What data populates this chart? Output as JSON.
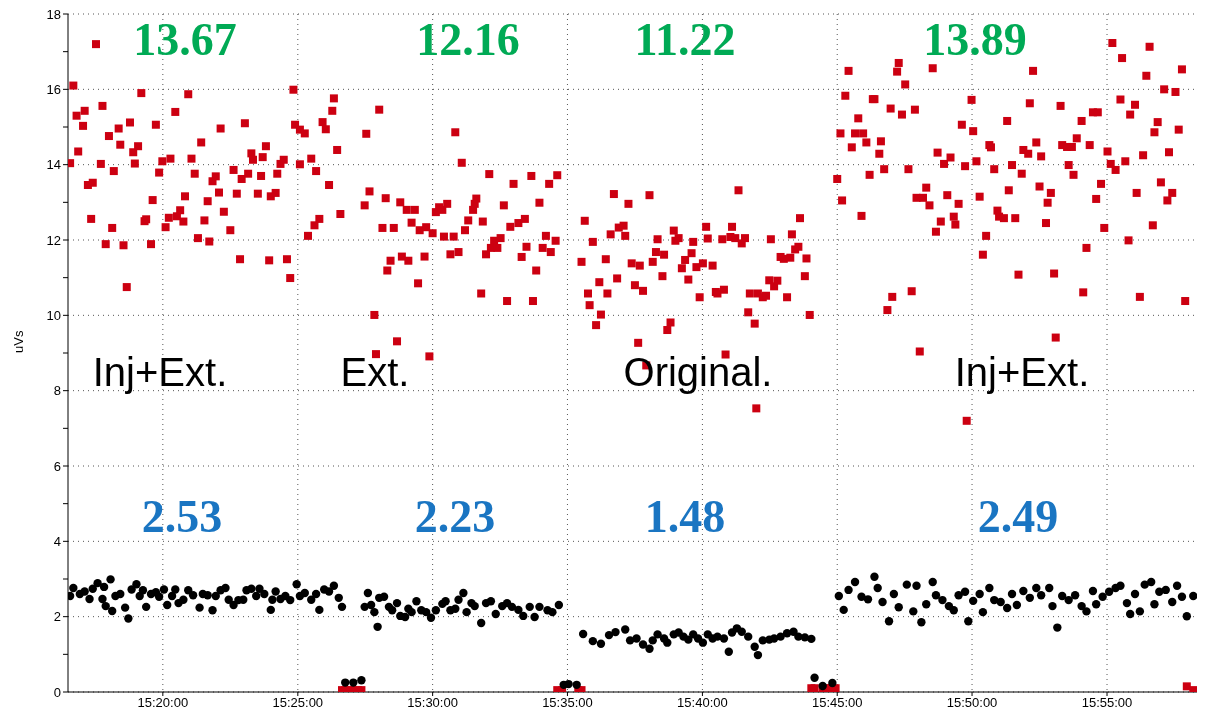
{
  "chart_data": {
    "type": "scatter",
    "ylabel": "uVs",
    "xlim": [
      15.2747,
      15.9723
    ],
    "xticks": [
      {
        "value": 15.3333,
        "label": "15:20:00"
      },
      {
        "value": 15.4167,
        "label": "15:25:00"
      },
      {
        "value": 15.5,
        "label": "15:30:00"
      },
      {
        "value": 15.5833,
        "label": "15:35:00"
      },
      {
        "value": 15.6667,
        "label": "15:40:00"
      },
      {
        "value": 15.75,
        "label": "15:45:00"
      },
      {
        "value": 15.8333,
        "label": "15:50:00"
      },
      {
        "value": 15.9167,
        "label": "15:55:00"
      }
    ],
    "ylim": [
      0,
      18
    ],
    "yticks": [
      0,
      {
        "value": 1,
        "label": null
      },
      2,
      {
        "value": 3,
        "label": null
      },
      4,
      {
        "value": 5,
        "label": null
      },
      6,
      {
        "value": 7,
        "label": null
      },
      8,
      {
        "value": 9,
        "label": null
      },
      10,
      {
        "value": 11,
        "label": null
      },
      12,
      {
        "value": 13,
        "label": null
      },
      14,
      {
        "value": 15,
        "label": null
      },
      16,
      {
        "value": 17,
        "label": null
      },
      18
    ],
    "grid": true,
    "legend": false,
    "line_style": "dotted",
    "series": [
      {
        "color": "#cc0011",
        "marker": "square",
        "x": [
          15.292,
          15.278,
          15.276,
          15.28,
          15.285,
          15.284,
          15.281,
          15.287,
          15.29,
          15.289,
          15.295,
          15.296,
          15.298,
          15.3,
          15.302,
          15.303,
          15.306,
          15.307,
          15.309,
          15.311,
          15.313,
          15.315,
          15.316,
          15.318,
          15.32,
          15.322,
          15.323,
          15.326,
          15.327,
          15.329,
          15.331,
          15.333,
          15.335,
          15.337,
          15.338,
          15.341,
          15.342,
          15.344,
          15.346,
          15.347,
          15.349,
          15.351,
          15.353,
          15.355,
          15.357,
          15.359,
          15.361,
          15.362,
          15.364,
          15.366,
          15.368,
          15.369,
          15.371,
          15.375,
          15.377,
          15.379,
          15.381,
          15.382,
          15.384,
          15.386,
          15.388,
          15.389,
          15.392,
          15.394,
          15.395,
          15.397,
          15.399,
          15.4,
          15.403,
          15.404,
          15.406,
          15.408,
          15.41,
          15.412,
          15.414,
          15.415,
          15.418,
          15.418,
          15.421,
          15.423,
          15.425,
          15.427,
          15.428,
          15.43,
          15.432,
          15.434,
          15.436,
          15.438,
          15.439,
          15.441,
          15.443,
          15.444,
          15.446,
          15.449,
          15.451,
          15.454,
          15.456,
          15.458,
          15.459,
          15.461,
          15.464,
          15.465,
          15.467,
          15.469,
          15.471,
          15.472,
          15.474,
          15.476,
          15.478,
          15.48,
          15.481,
          15.484,
          15.485,
          15.487,
          15.489,
          15.491,
          15.492,
          15.495,
          15.496,
          15.498,
          15.5,
          15.502,
          15.504,
          15.506,
          15.507,
          15.509,
          15.511,
          15.513,
          15.514,
          15.516,
          15.518,
          15.52,
          15.522,
          15.525,
          15.526,
          15.527,
          15.53,
          15.531,
          15.533,
          15.535,
          15.536,
          15.538,
          15.54,
          15.542,
          15.544,
          15.546,
          15.548,
          15.55,
          15.553,
          15.555,
          15.557,
          15.558,
          15.561,
          15.562,
          15.564,
          15.566,
          15.568,
          15.57,
          15.572,
          15.573,
          15.576,
          15.577,
          15.577,
          15.58,
          15.59,
          15.592,
          15.592,
          15.594,
          15.596,
          15.597,
          15.599,
          15.601,
          15.603,
          15.604,
          15.607,
          15.608,
          15.61,
          15.612,
          15.614,
          15.615,
          15.618,
          15.619,
          15.621,
          15.623,
          15.625,
          15.627,
          15.628,
          15.63,
          15.632,
          15.634,
          15.636,
          15.638,
          15.639,
          15.642,
          15.643,
          15.645,
          15.647,
          15.649,
          15.65,
          15.652,
          15.654,
          15.656,
          15.658,
          15.66,
          15.661,
          15.663,
          15.665,
          15.667,
          15.669,
          15.67,
          15.673,
          15.675,
          15.676,
          15.679,
          15.68,
          15.681,
          15.684,
          15.685,
          15.687,
          15.689,
          15.691,
          15.693,
          15.695,
          15.696,
          15.699,
          15.7,
          15.701,
          15.704,
          15.706,
          15.708,
          15.709,
          15.711,
          15.713,
          15.715,
          15.717,
          15.719,
          15.721,
          15.722,
          15.724,
          15.726,
          15.727,
          15.73,
          15.731,
          15.733,
          15.734,
          15.736,
          15.741,
          15.744,
          15.746,
          15.749,
          15.75,
          15.752,
          15.753,
          15.755,
          15.757,
          15.759,
          15.761,
          15.763,
          15.765,
          15.766,
          15.768,
          15.77,
          15.772,
          15.773,
          15.776,
          15.777,
          15.779,
          15.781,
          15.783,
          15.784,
          15.787,
          15.788,
          15.79,
          15.792,
          15.794,
          15.796,
          15.798,
          15.799,
          15.801,
          15.803,
          15.805,
          15.807,
          15.809,
          15.811,
          15.812,
          15.814,
          15.816,
          15.818,
          15.82,
          15.822,
          15.823,
          15.825,
          15.827,
          15.829,
          15.83,
          15.833,
          15.834,
          15.836,
          15.838,
          15.84,
          15.842,
          15.844,
          15.845,
          15.847,
          15.849,
          15.85,
          15.853,
          15.855,
          15.856,
          15.858,
          15.86,
          15.862,
          15.864,
          15.865,
          15.868,
          15.869,
          15.871,
          15.873,
          15.875,
          15.876,
          15.879,
          15.88,
          15.882,
          15.884,
          15.885,
          15.888,
          15.889,
          15.892,
          15.893,
          15.895,
          15.896,
          15.898,
          15.901,
          15.902,
          15.904,
          15.906,
          15.908,
          15.91,
          15.911,
          15.913,
          15.915,
          15.917,
          15.919,
          15.92,
          15.922,
          15.925,
          15.926,
          15.928,
          15.93,
          15.931,
          15.934,
          15.935,
          15.937,
          15.939,
          15.941,
          15.943,
          15.945,
          15.946,
          15.948,
          15.95,
          15.952,
          15.954,
          15.955,
          15.957,
          15.959,
          15.961,
          15.963,
          15.965,
          15.966,
          15.97
        ],
        "values": [
          17.2,
          16.1,
          14.04,
          15.3,
          15.43,
          15.03,
          14.35,
          13.46,
          13.52,
          12.56,
          14.02,
          15.56,
          11.89,
          14.76,
          12.32,
          13.83,
          14.96,
          14.53,
          11.86,
          10.75,
          15.12,
          14.33,
          14.03,
          14.49,
          15.9,
          12.5,
          12.55,
          11.89,
          13.06,
          15.06,
          13.79,
          14.09,
          12.34,
          12.59,
          14.16,
          15.4,
          12.63,
          12.79,
          12.49,
          13.16,
          15.87,
          14.16,
          13.76,
          12.05,
          14.59,
          12.52,
          13.03,
          11.96,
          13.56,
          13.69,
          13.26,
          14.96,
          12.75,
          12.26,
          13.86,
          13.23,
          11.49,
          13.62,
          15.1,
          13.76,
          14.3,
          14.13,
          13.23,
          13.7,
          14.2,
          14.49,
          11.46,
          13.16,
          13.25,
          13.76,
          14.02,
          14.13,
          11.49,
          10.99,
          15.99,
          15.06,
          14.01,
          14.93,
          14.83,
          12.11,
          14.16,
          12.39,
          13.83,
          12.56,
          15.13,
          14.94,
          13.46,
          15.43,
          15.76,
          14.39,
          12.69,
          0.05,
          0.05,
          0.05,
          0.05,
          0.05,
          0.05,
          12.92,
          14.82,
          13.29,
          10.01,
          8.97,
          15.46,
          12.32,
          13.11,
          11.19,
          11.45,
          12.32,
          9.31,
          13.0,
          11.56,
          12.8,
          11.45,
          12.46,
          12.8,
          10.85,
          12.26,
          11.56,
          12.34,
          8.91,
          12.18,
          12.74,
          12.87,
          12.8,
          12.09,
          12.96,
          11.62,
          12.09,
          14.86,
          11.68,
          14.05,
          12.26,
          12.52,
          12.8,
          12.96,
          13.1,
          10.58,
          12.49,
          11.62,
          13.75,
          11.79,
          11.98,
          11.79,
          12.05,
          12.92,
          10.38,
          12.35,
          13.49,
          12.45,
          11.55,
          12.56,
          11.82,
          13.7,
          10.38,
          11.19,
          12.99,
          11.79,
          12.11,
          13.49,
          11.68,
          11.98,
          13.72,
          0.05,
          0.05,
          0.05,
          0.05,
          11.42,
          12.51,
          10.58,
          10.27,
          11.95,
          9.74,
          10.88,
          10.02,
          11.49,
          10.58,
          12.15,
          13.22,
          10.98,
          12.33,
          12.38,
          12.11,
          12.96,
          11.38,
          10.8,
          9.27,
          11.32,
          10.65,
          8.67,
          13.19,
          11.42,
          11.68,
          12.02,
          11.04,
          11.61,
          9.61,
          9.81,
          12.25,
          11.98,
          12.05,
          11.25,
          11.47,
          10.95,
          11.65,
          11.95,
          11.28,
          10.48,
          11.38,
          12.35,
          12.04,
          11.32,
          10.62,
          10.58,
          12.02,
          10.68,
          8.96,
          12.08,
          12.35,
          12.05,
          13.32,
          11.91,
          12.05,
          10.08,
          10.58,
          9.78,
          7.53,
          10.58,
          10.48,
          10.52,
          10.93,
          12.02,
          10.77,
          10.92,
          11.55,
          11.5,
          10.48,
          11.53,
          12.15,
          11.75,
          11.82,
          12.58,
          11.04,
          11.51,
          10.01,
          0.1,
          0.1,
          0.1,
          0.1,
          0.1,
          0.1,
          13.62,
          14.83,
          13.05,
          15.83,
          16.49,
          14.46,
          14.83,
          15.23,
          12.64,
          14.83,
          14.59,
          13.73,
          15.74,
          15.74,
          14.29,
          14.62,
          13.88,
          10.14,
          15.49,
          10.49,
          16.47,
          16.7,
          15.33,
          16.13,
          13.88,
          10.64,
          15.46,
          13.12,
          9.04,
          13.12,
          13.39,
          12.92,
          16.56,
          12.22,
          14.32,
          12.49,
          14.02,
          13.19,
          14.19,
          12.62,
          12.41,
          12.96,
          15.06,
          13.96,
          7.2,
          15.72,
          14.89,
          14.09,
          13.15,
          11.61,
          12.11,
          14.52,
          14.46,
          13.88,
          12.78,
          12.62,
          12.58,
          15.16,
          13.32,
          13.99,
          12.58,
          11.08,
          13.76,
          14.39,
          14.29,
          15.63,
          16.49,
          14.59,
          13.42,
          14.22,
          12.45,
          12.99,
          13.25,
          11.11,
          9.41,
          15.56,
          14.52,
          14.47,
          13.99,
          14.47,
          13.73,
          14.7,
          15.16,
          10.61,
          11.79,
          14.52,
          15.39,
          13.09,
          15.39,
          13.49,
          12.32,
          14.35,
          14.02,
          17.23,
          13.86,
          15.73,
          16.83,
          14.09,
          11.99,
          15.33,
          15.59,
          13.25,
          10.49,
          14.25,
          16.36,
          17.13,
          12.39,
          14.86,
          15.13,
          13.53,
          16.0,
          13.05,
          14.33,
          13.25,
          15.93,
          14.93,
          16.53,
          10.38,
          0.15,
          0.05
        ]
      },
      {
        "color": "#000000",
        "marker": "circle",
        "x": [
          15.276,
          15.278,
          15.282,
          15.285,
          15.288,
          15.29,
          15.293,
          15.296,
          15.297,
          15.298,
          15.301,
          15.302,
          15.304,
          15.307,
          15.31,
          15.312,
          15.314,
          15.317,
          15.319,
          15.321,
          15.323,
          15.326,
          15.329,
          15.331,
          15.334,
          15.336,
          15.339,
          15.341,
          15.343,
          15.346,
          15.349,
          15.352,
          15.356,
          15.358,
          15.361,
          15.364,
          15.366,
          15.369,
          15.372,
          15.374,
          15.377,
          15.38,
          15.383,
          15.385,
          15.388,
          15.391,
          15.393,
          15.396,
          15.4,
          15.401,
          15.403,
          15.406,
          15.409,
          15.412,
          15.416,
          15.418,
          15.421,
          15.425,
          15.428,
          15.43,
          15.433,
          15.436,
          15.439,
          15.442,
          15.444,
          15.446,
          15.451,
          15.456,
          15.458,
          15.46,
          15.462,
          15.464,
          15.466,
          15.467,
          15.47,
          15.473,
          15.475,
          15.478,
          15.48,
          15.483,
          15.485,
          15.487,
          15.49,
          15.493,
          15.496,
          15.499,
          15.502,
          15.506,
          15.508,
          15.511,
          15.514,
          15.516,
          15.519,
          15.521,
          15.524,
          15.526,
          15.53,
          15.533,
          15.536,
          15.539,
          15.543,
          15.546,
          15.549,
          15.553,
          15.556,
          15.56,
          15.563,
          15.566,
          15.571,
          15.574,
          15.578,
          15.581,
          15.584,
          15.589,
          15.593,
          15.599,
          15.604,
          15.609,
          15.613,
          15.619,
          15.622,
          15.626,
          15.63,
          15.634,
          15.636,
          15.639,
          15.643,
          15.645,
          15.649,
          15.652,
          15.655,
          15.658,
          15.661,
          15.664,
          15.667,
          15.67,
          15.673,
          15.676,
          15.68,
          15.683,
          15.685,
          15.688,
          15.691,
          15.695,
          15.699,
          15.701,
          15.704,
          15.708,
          15.711,
          15.715,
          15.719,
          15.723,
          15.726,
          15.73,
          15.734,
          15.736,
          15.741,
          15.747,
          15.751,
          15.754,
          15.757,
          15.761,
          15.765,
          15.769,
          15.773,
          15.775,
          15.778,
          15.782,
          15.785,
          15.788,
          15.793,
          15.797,
          15.799,
          15.802,
          15.805,
          15.809,
          15.811,
          15.815,
          15.819,
          15.822,
          15.825,
          15.829,
          15.831,
          15.834,
          15.838,
          15.84,
          15.844,
          15.847,
          15.851,
          15.855,
          15.858,
          15.861,
          15.865,
          15.869,
          15.873,
          15.876,
          15.881,
          15.883,
          15.886,
          15.889,
          15.893,
          15.897,
          15.901,
          15.904,
          15.908,
          15.91,
          15.914,
          15.918,
          15.922,
          15.925,
          15.929,
          15.931,
          15.934,
          15.937,
          15.94,
          15.944,
          15.946,
          15.949,
          15.953,
          15.957,
          15.96,
          15.963,
          15.966,
          15.97
        ],
        "values": [
          2.55,
          2.76,
          2.6,
          2.67,
          2.47,
          2.74,
          2.89,
          2.47,
          2.79,
          2.28,
          2.99,
          2.15,
          2.55,
          2.6,
          2.24,
          1.95,
          2.72,
          2.86,
          2.55,
          2.7,
          2.26,
          2.6,
          2.65,
          2.53,
          2.72,
          2.31,
          2.55,
          2.72,
          2.36,
          2.45,
          2.7,
          2.57,
          2.24,
          2.6,
          2.57,
          2.17,
          2.55,
          2.7,
          2.76,
          2.45,
          2.31,
          2.44,
          2.45,
          2.7,
          2.74,
          2.55,
          2.74,
          2.6,
          2.18,
          2.45,
          2.67,
          2.47,
          2.55,
          2.44,
          2.86,
          2.55,
          2.63,
          2.45,
          2.6,
          2.18,
          2.72,
          2.67,
          2.82,
          2.5,
          2.26,
          0.25,
          0.25,
          0.31,
          2.26,
          2.63,
          2.31,
          2.12,
          1.73,
          2.5,
          2.53,
          2.26,
          2.17,
          2.36,
          2.02,
          1.99,
          2.21,
          2.12,
          2.41,
          2.17,
          2.12,
          1.97,
          2.17,
          2.34,
          2.41,
          2.17,
          2.21,
          2.45,
          2.63,
          2.12,
          2.36,
          2.28,
          1.83,
          2.36,
          2.41,
          2.07,
          2.28,
          2.36,
          2.26,
          2.18,
          2.02,
          2.26,
          1.99,
          2.26,
          2.17,
          2.12,
          2.31,
          0.19,
          0.21,
          0.19,
          1.54,
          1.35,
          1.28,
          1.51,
          1.59,
          1.66,
          1.37,
          1.42,
          1.26,
          1.15,
          1.37,
          1.53,
          1.42,
          1.31,
          1.53,
          1.58,
          1.47,
          1.39,
          1.53,
          1.42,
          1.31,
          1.53,
          1.42,
          1.47,
          1.42,
          1.07,
          1.58,
          1.69,
          1.6,
          1.47,
          1.2,
          0.98,
          1.37,
          1.39,
          1.42,
          1.47,
          1.56,
          1.6,
          1.47,
          1.45,
          1.41,
          0.38,
          0.16,
          0.24,
          2.55,
          2.18,
          2.71,
          2.92,
          2.53,
          2.46,
          3.06,
          2.76,
          2.39,
          1.88,
          2.6,
          2.25,
          2.85,
          2.14,
          2.82,
          1.85,
          2.33,
          2.92,
          2.57,
          2.44,
          2.28,
          2.17,
          2.57,
          2.66,
          1.88,
          2.42,
          2.6,
          2.12,
          2.76,
          2.44,
          2.39,
          2.23,
          2.6,
          2.31,
          2.68,
          2.5,
          2.76,
          2.57,
          2.76,
          2.28,
          1.71,
          2.55,
          2.44,
          2.57,
          2.28,
          2.14,
          2.68,
          2.33,
          2.53,
          2.66,
          2.76,
          2.82,
          2.36,
          2.07,
          2.6,
          2.14,
          2.85,
          2.92,
          2.33,
          2.66,
          2.71,
          2.39,
          2.82,
          2.53,
          2.01,
          2.55
        ]
      }
    ],
    "annotations": [
      "13.67",
      "12.16",
      "11.22",
      "13.89",
      "2.53",
      "2.23",
      "1.48",
      "2.49",
      "Inj+Ext.",
      "Ext.",
      "Original.",
      "Inj+Ext."
    ]
  }
}
